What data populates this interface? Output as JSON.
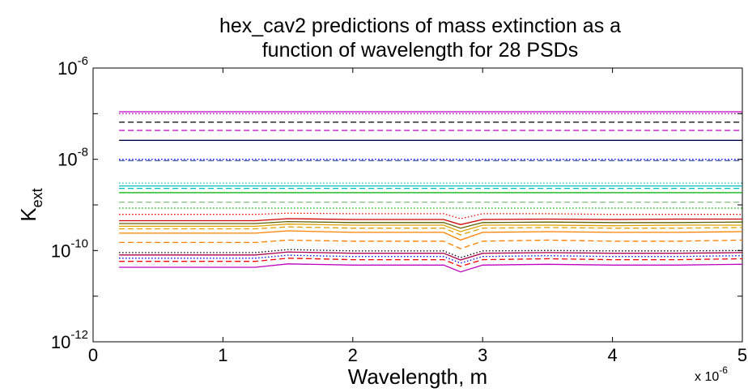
{
  "chart_data": {
    "type": "line",
    "title_lines": [
      "hex_cav2 predictions of mass extinction as a",
      "function of wavelength for 28 PSDs"
    ],
    "xlabel": "Wavelength, m",
    "ylabel_main": "K",
    "ylabel_sub": "ext",
    "x_multiplier": {
      "prefix": "x 10",
      "exponent": "-6"
    },
    "xlim": [
      0,
      5
    ],
    "xticks": [
      0,
      1,
      2,
      3,
      4,
      5
    ],
    "xtick_labels": [
      "0",
      "1",
      "2",
      "3",
      "4",
      "5"
    ],
    "yscale": "log",
    "ylim": [
      1e-12,
      1e-06
    ],
    "yticks": [
      1e-12,
      1e-10,
      1e-08,
      1e-06
    ],
    "ytick_labels": [
      {
        "base": "10",
        "exp": "-12"
      },
      {
        "base": "10",
        "exp": "-10"
      },
      {
        "base": "10",
        "exp": "-8"
      },
      {
        "base": "10",
        "exp": "-6"
      }
    ],
    "grid": false,
    "x": [
      0.2,
      1.25,
      1.5,
      2.0,
      2.5,
      2.7,
      2.83,
      3.0,
      3.5,
      4.0,
      4.5,
      5.0
    ],
    "series": [
      {
        "color": "#bf00bf",
        "style": "solid",
        "values": [
          1.1e-07,
          1.1e-07,
          1.1e-07,
          1.1e-07,
          1.1e-07,
          1.1e-07,
          1.1e-07,
          1.1e-07,
          1.1e-07,
          1.1e-07,
          1.1e-07,
          1.1e-07
        ]
      },
      {
        "color": "#bf00bf",
        "style": "dotted",
        "values": [
          1e-07,
          1e-07,
          1e-07,
          1e-07,
          1e-07,
          1e-07,
          1e-07,
          1e-07,
          1e-07,
          1e-07,
          1e-07,
          1e-07
        ]
      },
      {
        "color": "#000000",
        "style": "dashed",
        "values": [
          6.5e-08,
          6.5e-08,
          6.5e-08,
          6.5e-08,
          6.5e-08,
          6.5e-08,
          6.5e-08,
          6.5e-08,
          6.5e-08,
          6.5e-08,
          6.5e-08,
          6.5e-08
        ]
      },
      {
        "color": "#bf00bf",
        "style": "dashed",
        "values": [
          4.3e-08,
          4.3e-08,
          4.3e-08,
          4.3e-08,
          4.3e-08,
          4.3e-08,
          4.3e-08,
          4.3e-08,
          4.3e-08,
          4.3e-08,
          4.3e-08,
          4.3e-08
        ]
      },
      {
        "color": "#000040",
        "style": "solid",
        "values": [
          2.6e-08,
          2.6e-08,
          2.6e-08,
          2.6e-08,
          2.6e-08,
          2.6e-08,
          2.6e-08,
          2.6e-08,
          2.6e-08,
          2.6e-08,
          2.6e-08,
          2.6e-08
        ]
      },
      {
        "color": "#0000ff",
        "style": "dotted",
        "values": [
          1e-08,
          1e-08,
          1e-08,
          1e-08,
          1e-08,
          1e-08,
          1e-08,
          1e-08,
          1e-08,
          1e-08,
          1e-08,
          1e-08
        ]
      },
      {
        "color": "#4060a0",
        "style": "dashed",
        "values": [
          9.3e-09,
          9.3e-09,
          9.3e-09,
          9.3e-09,
          9.3e-09,
          9.3e-09,
          9.3e-09,
          9.3e-09,
          9.3e-09,
          9.3e-09,
          9.3e-09,
          9.3e-09
        ]
      },
      {
        "color": "#00bfbf",
        "style": "dotted",
        "values": [
          3e-09,
          3e-09,
          3e-09,
          3e-09,
          3e-09,
          3e-09,
          3e-09,
          3e-09,
          3e-09,
          3e-09,
          3e-09,
          3e-09
        ]
      },
      {
        "color": "#00bfbf",
        "style": "solid",
        "values": [
          2.6e-09,
          2.6e-09,
          2.6e-09,
          2.6e-09,
          2.6e-09,
          2.6e-09,
          2.6e-09,
          2.6e-09,
          2.6e-09,
          2.6e-09,
          2.6e-09,
          2.6e-09
        ]
      },
      {
        "color": "#00bfbf",
        "style": "dashed",
        "values": [
          2.3e-09,
          2.3e-09,
          2.3e-09,
          2.3e-09,
          2.3e-09,
          2.3e-09,
          2.3e-09,
          2.3e-09,
          2.3e-09,
          2.3e-09,
          2.3e-09,
          2.3e-09
        ]
      },
      {
        "color": "#00b000",
        "style": "solid",
        "values": [
          1.85e-09,
          1.85e-09,
          1.85e-09,
          1.85e-09,
          1.85e-09,
          1.85e-09,
          1.85e-09,
          1.85e-09,
          1.85e-09,
          1.85e-09,
          1.85e-09,
          1.85e-09
        ]
      },
      {
        "color": "#80c080",
        "style": "dashed",
        "values": [
          1.15e-09,
          1.15e-09,
          1.15e-09,
          1.15e-09,
          1.15e-09,
          1.15e-09,
          1.15e-09,
          1.15e-09,
          1.15e-09,
          1.15e-09,
          1.15e-09,
          1.15e-09
        ]
      },
      {
        "color": "#00b000",
        "style": "dotted",
        "values": [
          8.5e-10,
          8.5e-10,
          8.5e-10,
          8.5e-10,
          8.5e-10,
          8.5e-10,
          8.5e-10,
          8.5e-10,
          8.5e-10,
          8.5e-10,
          8.5e-10,
          8.5e-10
        ]
      },
      {
        "color": "#ff0000",
        "style": "dotted",
        "values": [
          6.2e-10,
          6.2e-10,
          6.6e-10,
          6.4e-10,
          6.4e-10,
          6.4e-10,
          5e-10,
          6.4e-10,
          6.4e-10,
          6.2e-10,
          6.2e-10,
          6.2e-10
        ]
      },
      {
        "color": "#d00000",
        "style": "solid",
        "values": [
          4.5e-10,
          4.5e-10,
          5e-10,
          4.8e-10,
          4.8e-10,
          4.8e-10,
          3.7e-10,
          4.8e-10,
          4.9e-10,
          4.8e-10,
          4.9e-10,
          4.9e-10
        ]
      },
      {
        "color": "#606000",
        "style": "solid",
        "values": [
          3.9e-10,
          3.9e-10,
          4.3e-10,
          4.1e-10,
          4.1e-10,
          4.1e-10,
          3.1e-10,
          4.1e-10,
          4.2e-10,
          4.1e-10,
          4.1e-10,
          4.2e-10
        ]
      },
      {
        "color": "#e0a000",
        "style": "solid",
        "values": [
          3.4e-10,
          3.4e-10,
          3.8e-10,
          3.6e-10,
          3.6e-10,
          3.6e-10,
          2.6e-10,
          3.6e-10,
          3.6e-10,
          3.5e-10,
          3.6e-10,
          3.6e-10
        ]
      },
      {
        "color": "#e0a000",
        "style": "dashed",
        "values": [
          3e-10,
          3e-10,
          3.3e-10,
          3.1e-10,
          3.1e-10,
          3.1e-10,
          2.2e-10,
          3.1e-10,
          3.2e-10,
          3.1e-10,
          3.1e-10,
          3.2e-10
        ]
      },
      {
        "color": "#ff8000",
        "style": "solid",
        "values": [
          2.4e-10,
          2.4e-10,
          2.7e-10,
          2.5e-10,
          2.5e-10,
          2.5e-10,
          1.7e-10,
          2.5e-10,
          2.6e-10,
          2.5e-10,
          2.5e-10,
          2.6e-10
        ]
      },
      {
        "color": "#ff8000",
        "style": "dashed",
        "values": [
          1.5e-10,
          1.5e-10,
          1.7e-10,
          1.6e-10,
          1.6e-10,
          1.6e-10,
          1.1e-10,
          1.6e-10,
          1.7e-10,
          1.6e-10,
          1.6e-10,
          1.7e-10
        ]
      },
      {
        "color": "#000000",
        "style": "dotted",
        "values": [
          9e-11,
          9e-11,
          1.05e-10,
          9.8e-11,
          9.8e-11,
          9.8e-11,
          7e-11,
          9.8e-11,
          1e-10,
          9.8e-11,
          9.8e-11,
          1e-10
        ]
      },
      {
        "color": "#b00050",
        "style": "solid",
        "values": [
          8e-11,
          8e-11,
          9.3e-11,
          8.7e-11,
          8.7e-11,
          8.7e-11,
          6.2e-11,
          8.7e-11,
          9e-11,
          8.7e-11,
          8.7e-11,
          9e-11
        ]
      },
      {
        "color": "#0000ff",
        "style": "dotted",
        "values": [
          6.8e-11,
          6.8e-11,
          7.9e-11,
          7.4e-11,
          7.4e-11,
          7.4e-11,
          5.3e-11,
          7.4e-11,
          7.7e-11,
          7.4e-11,
          7.4e-11,
          7.7e-11
        ]
      },
      {
        "color": "#ff0000",
        "style": "dashed",
        "values": [
          5.8e-11,
          5.8e-11,
          6.8e-11,
          6.3e-11,
          6.3e-11,
          6.3e-11,
          4.5e-11,
          6.3e-11,
          6.6e-11,
          6.3e-11,
          6.3e-11,
          6.6e-11
        ]
      },
      {
        "color": "#bf00bf",
        "style": "solid",
        "values": [
          4.3e-11,
          4.3e-11,
          5.1e-11,
          4.8e-11,
          4.8e-11,
          4.8e-11,
          3.4e-11,
          4.8e-11,
          5e-11,
          4.8e-11,
          4.8e-11,
          5e-11
        ]
      }
    ]
  }
}
